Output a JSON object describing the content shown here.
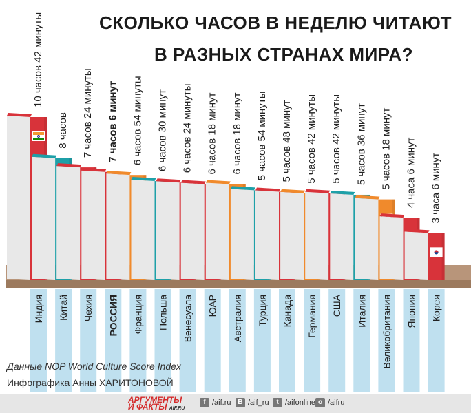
{
  "title_line1": "СКОЛЬКО ЧАСОВ В НЕДЕЛЮ ЧИТАЮТ",
  "title_line2": "В РАЗНЫХ СТРАНАХ МИРА?",
  "source": "Данные NOP World Culture Score Index",
  "author": "Инфографика Анны ХАРИТОНОВОЙ",
  "footer": {
    "logo_line1": "АРГУМЕНТЫ",
    "logo_line2": "И ФАКТЫ",
    "logo_domain": "AIF.RU",
    "social": [
      {
        "icon": "facebook-icon",
        "glyph": "f",
        "label": "/aif.ru"
      },
      {
        "icon": "vk-icon",
        "glyph": "В",
        "label": "/aif_ru"
      },
      {
        "icon": "twitter-icon",
        "glyph": "t",
        "label": "/aifonline"
      },
      {
        "icon": "odnoklassniki-icon",
        "glyph": "о",
        "label": "/aifru"
      }
    ]
  },
  "colors": {
    "red": "#d8333a",
    "teal": "#1ea0a8",
    "orange": "#f08a2c",
    "stripe": "#bfe0ef",
    "shelf": "#9c7a5e",
    "page": "#e8e8e8"
  },
  "chart_data": {
    "type": "bar",
    "unit": "hours per week",
    "highlight": "РОССИЯ",
    "categories": [
      "Индия",
      "Китай",
      "Чехия",
      "РОССИЯ",
      "Франция",
      "Польша",
      "Венесуэла",
      "ЮАР",
      "Австралия",
      "Турция",
      "Канада",
      "Германия",
      "США",
      "Италия",
      "Великобритания",
      "Япония",
      "Корея"
    ],
    "values": [
      10.7,
      8.0,
      7.4,
      7.1,
      6.9,
      6.5,
      6.4,
      6.3,
      6.3,
      5.9,
      5.8,
      5.7,
      5.7,
      5.6,
      5.3,
      4.1,
      3.1
    ],
    "labels": [
      "10 часов 42 минуты",
      "8 часов",
      "7 часов 24 минуты",
      "7 часов 6 минут",
      "6 часов 54 минуты",
      "6 часов 30 минут",
      "6 часов 24 минуты",
      "6 часов 18 минут",
      "6 часов 18 минут",
      "5 часов 54 минуты",
      "5 часов 48 минут",
      "5 часов 42 минуты",
      "5 часов 42 минуты",
      "5 часов 36 минут",
      "5 часов 18 минут",
      "4 часа 6 минут",
      "3 часа 6 минут"
    ],
    "book_colors": [
      "red",
      "teal",
      "red",
      "red",
      "orange",
      "teal",
      "red",
      "red",
      "orange",
      "teal",
      "red",
      "orange",
      "red",
      "teal",
      "orange",
      "red",
      "red"
    ],
    "flags": [
      "india",
      "china",
      "czech",
      "russia",
      "france",
      "poland",
      "venezuela",
      "southafrica",
      "australia",
      "turkey",
      "canada",
      "germany",
      "usa",
      "italy",
      "uk",
      "japan",
      "korea"
    ]
  }
}
